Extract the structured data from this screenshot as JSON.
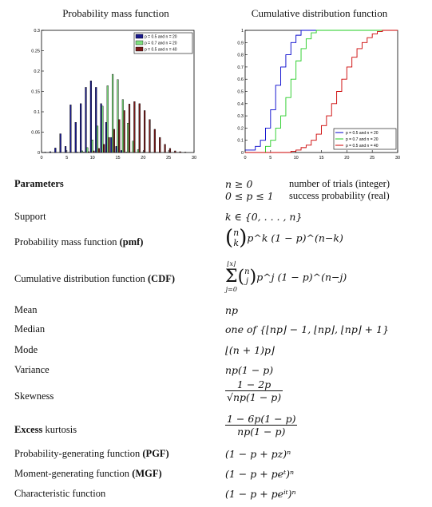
{
  "titles": {
    "pmf": "Probability mass function",
    "cdf": "Cumulative distribution function"
  },
  "chart_data": [
    {
      "type": "bar",
      "xlim": [
        0,
        30
      ],
      "ylim": [
        0,
        0.3
      ],
      "xticks": [
        "0",
        "5",
        "10",
        "15",
        "20",
        "25",
        "30"
      ],
      "yticks": [
        "0",
        "0.05",
        "0.1",
        "0.15",
        "0.2",
        "0.25",
        "0.3"
      ],
      "legend_position": "top-right",
      "series": [
        {
          "name": "p = 0.5 and n = 20",
          "color": "#1a1a8c",
          "values": [
            [
              1,
              0.001
            ],
            [
              2,
              0.002
            ],
            [
              3,
              0.011
            ],
            [
              4,
              0.046
            ],
            [
              5,
              0.015
            ],
            [
              6,
              0.117
            ],
            [
              7,
              0.074
            ],
            [
              8,
              0.12
            ],
            [
              9,
              0.16
            ],
            [
              10,
              0.176
            ],
            [
              11,
              0.16
            ],
            [
              12,
              0.12
            ],
            [
              13,
              0.074
            ],
            [
              14,
              0.037
            ],
            [
              15,
              0.015
            ],
            [
              16,
              0.005
            ],
            [
              17,
              0.001
            ]
          ]
        },
        {
          "name": "p = 0.7 and n = 20",
          "color": "#7fe07f",
          "values": [
            [
              7,
              0.001
            ],
            [
              8,
              0.004
            ],
            [
              9,
              0.012
            ],
            [
              10,
              0.031
            ],
            [
              11,
              0.065
            ],
            [
              12,
              0.114
            ],
            [
              13,
              0.164
            ],
            [
              14,
              0.192
            ],
            [
              15,
              0.179
            ],
            [
              16,
              0.13
            ],
            [
              17,
              0.072
            ],
            [
              18,
              0.028
            ],
            [
              19,
              0.007
            ],
            [
              20,
              0.001
            ]
          ]
        },
        {
          "name": "p = 0.5 and n = 40",
          "color": "#7a1a1a",
          "values": [
            [
              8,
              0.001
            ],
            [
              9,
              0.002
            ],
            [
              10,
              0.004
            ],
            [
              11,
              0.01
            ],
            [
              12,
              0.02
            ],
            [
              13,
              0.037
            ],
            [
              14,
              0.057
            ],
            [
              15,
              0.081
            ],
            [
              16,
              0.103
            ],
            [
              17,
              0.119
            ],
            [
              18,
              0.125
            ],
            [
              19,
              0.12
            ],
            [
              20,
              0.103
            ],
            [
              21,
              0.081
            ],
            [
              22,
              0.057
            ],
            [
              23,
              0.037
            ],
            [
              24,
              0.02
            ],
            [
              25,
              0.01
            ],
            [
              26,
              0.004
            ],
            [
              27,
              0.002
            ],
            [
              28,
              0.001
            ]
          ]
        }
      ]
    },
    {
      "type": "line",
      "xlim": [
        0,
        30
      ],
      "ylim": [
        0,
        1
      ],
      "xticks": [
        "0",
        "5",
        "10",
        "15",
        "20",
        "25",
        "30"
      ],
      "yticks": [
        "0",
        "0.1",
        "0.2",
        "0.3",
        "0.4",
        "0.5",
        "0.6",
        "0.7",
        "0.8",
        "0.9",
        "1"
      ],
      "legend_position": "bottom-right",
      "series": [
        {
          "name": "p = 0.5 and n = 20",
          "color": "#0000cc",
          "values": [
            [
              0,
              0.02
            ],
            [
              1,
              0.02
            ],
            [
              2,
              0.05
            ],
            [
              3,
              0.1
            ],
            [
              4,
              0.2
            ],
            [
              5,
              0.35
            ],
            [
              6,
              0.55
            ],
            [
              7,
              0.7
            ],
            [
              8,
              0.8
            ],
            [
              9,
              0.9
            ],
            [
              10,
              0.96
            ],
            [
              11,
              1.0
            ]
          ]
        },
        {
          "name": "p = 0.7 and n = 20",
          "color": "#22cc22",
          "values": [
            [
              0,
              0
            ],
            [
              3,
              0
            ],
            [
              4,
              0.05
            ],
            [
              5,
              0.1
            ],
            [
              6,
              0.2
            ],
            [
              7,
              0.3
            ],
            [
              8,
              0.45
            ],
            [
              9,
              0.6
            ],
            [
              10,
              0.75
            ],
            [
              11,
              0.85
            ],
            [
              12,
              0.93
            ],
            [
              13,
              0.98
            ],
            [
              14,
              1.0
            ]
          ]
        },
        {
          "name": "p = 0.5 and n = 40",
          "color": "#cc0000",
          "values": [
            [
              0,
              0
            ],
            [
              8,
              0
            ],
            [
              9,
              0.01
            ],
            [
              10,
              0.02
            ],
            [
              11,
              0.04
            ],
            [
              12,
              0.06
            ],
            [
              13,
              0.1
            ],
            [
              14,
              0.15
            ],
            [
              15,
              0.22
            ],
            [
              16,
              0.3
            ],
            [
              17,
              0.4
            ],
            [
              18,
              0.5
            ],
            [
              19,
              0.6
            ],
            [
              20,
              0.7
            ],
            [
              21,
              0.78
            ],
            [
              22,
              0.85
            ],
            [
              23,
              0.9
            ],
            [
              24,
              0.94
            ],
            [
              25,
              0.97
            ],
            [
              26,
              0.99
            ],
            [
              27,
              1.0
            ],
            [
              30,
              1.0
            ]
          ]
        }
      ]
    }
  ],
  "table": {
    "parameters": {
      "label": "Parameters",
      "v1": "n ≥ 0",
      "v2": "0 ≤ p ≤ 1",
      "d1": "number of trials (integer)",
      "d2": "success probability (real)"
    },
    "support": {
      "label": "Support",
      "value": "k ∈ {0, . . . , n}"
    },
    "pmf": {
      "label": "Probability mass function",
      "abbr": "(pmf)",
      "tail": "p^k (1 − p)^(n−k)"
    },
    "cdf": {
      "label": "Cumulative distribution function",
      "abbr": "(CDF)",
      "top": "⌊x⌋",
      "bottom": "j=0",
      "tail": "p^j (1 − p)^(n−j)"
    },
    "mean": {
      "label": "Mean",
      "value": "np"
    },
    "median": {
      "label": "Median",
      "value": "one of {⌊np⌋ − 1, ⌊np⌋, ⌊np⌋ + 1}"
    },
    "mode": {
      "label": "Mode",
      "value": "⌊(n + 1)p⌋"
    },
    "variance": {
      "label": "Variance",
      "value": "np(1 − p)"
    },
    "skewness": {
      "label": "Skewness",
      "num": "1 − 2p",
      "den": "np(1 − p)"
    },
    "kurtosis": {
      "label_bold": "Excess",
      "label": "kurtosis",
      "num": "1 − 6p(1 − p)",
      "den": "np(1 − p)"
    },
    "pgf": {
      "label": "Probability-generating function",
      "abbr": "(PGF)",
      "value": "(1 − p + pz)ⁿ"
    },
    "mgf": {
      "label": "Moment-generating function",
      "abbr": "(MGF)",
      "value": "(1 − p + peᵗ)ⁿ"
    },
    "cf": {
      "label": "Characteristic function",
      "value": "(1 − p + peⁱᵗ)ⁿ"
    }
  }
}
